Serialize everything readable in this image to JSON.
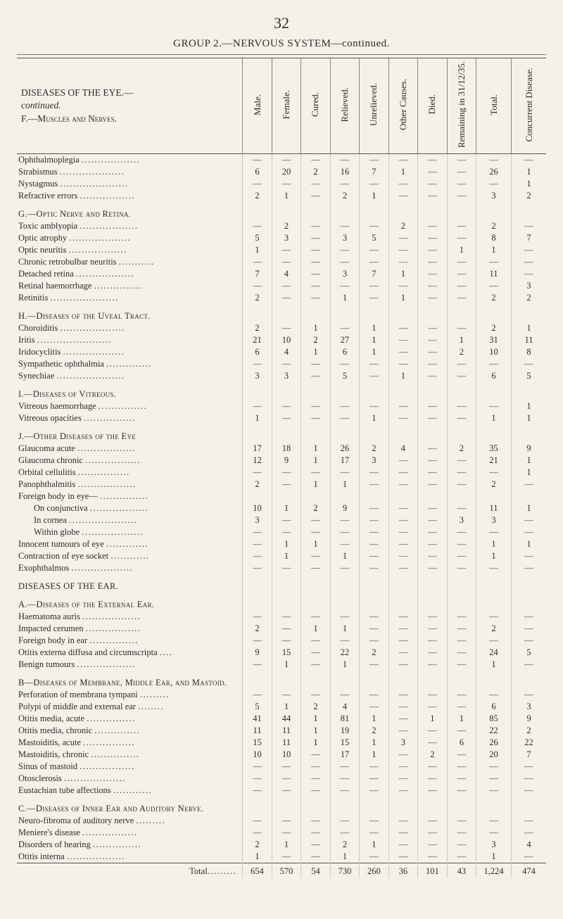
{
  "page_number": "32",
  "title": "GROUP 2.—NERVOUS SYSTEM—continued.",
  "header_left_lines": [
    "DISEASES OF THE EYE.—",
    "continued.",
    "F.—Muscles and Nerves."
  ],
  "columns_rotated": [
    "Male.",
    "Female.",
    "Cured.",
    "Relieved.",
    "Unrelieved.",
    "Other Causes.",
    "Died.",
    "Remaining in 31/12/35.",
    "Total.",
    "Concurrent Disease."
  ],
  "rows": [
    {
      "label": "Ophthalmoplegia",
      "cells": [
        "—",
        "—",
        "—",
        "—",
        "—",
        "—",
        "—",
        "—",
        "—",
        "—"
      ]
    },
    {
      "label": "Strabismus",
      "cells": [
        "6",
        "20",
        "2",
        "16",
        "7",
        "1",
        "—",
        "—",
        "26",
        "1"
      ]
    },
    {
      "label": "Nystagmus",
      "cells": [
        "—",
        "—",
        "—",
        "—",
        "—",
        "—",
        "—",
        "—",
        "—",
        "1"
      ]
    },
    {
      "label": "Refractive errors",
      "cells": [
        "2",
        "1",
        "—",
        "2",
        "1",
        "—",
        "—",
        "—",
        "3",
        "2"
      ]
    },
    {
      "section": "G.—Optic Nerve and Retina."
    },
    {
      "label": "Toxic amblyopia",
      "cells": [
        "—",
        "2",
        "—",
        "—",
        "—",
        "2",
        "—",
        "—",
        "2",
        "—"
      ]
    },
    {
      "label": "Optic atrophy",
      "cells": [
        "5",
        "3",
        "—",
        "3",
        "5",
        "—",
        "—",
        "—",
        "8",
        "7"
      ]
    },
    {
      "label": "Optic neuritis",
      "cells": [
        "1",
        "—",
        "—",
        "—",
        "—",
        "—",
        "—",
        "1",
        "1",
        "—"
      ]
    },
    {
      "label": "Chronic retrobulbar neuritis",
      "cells": [
        "—",
        "—",
        "—",
        "—",
        "—",
        "—",
        "—",
        "—",
        "—",
        "—"
      ]
    },
    {
      "label": "Detached retina",
      "cells": [
        "7",
        "4",
        "—",
        "3",
        "7",
        "1",
        "—",
        "—",
        "11",
        "—"
      ]
    },
    {
      "label": "Retinal haemorrhage",
      "cells": [
        "—",
        "—",
        "—",
        "—",
        "—",
        "—",
        "—",
        "—",
        "—",
        "3"
      ]
    },
    {
      "label": "Retinitis",
      "cells": [
        "2",
        "—",
        "—",
        "1",
        "—",
        "1",
        "—",
        "—",
        "2",
        "2"
      ]
    },
    {
      "section": "H.—Diseases of the Uveal Tract."
    },
    {
      "label": "Choroiditis",
      "cells": [
        "2",
        "—",
        "1",
        "—",
        "1",
        "—",
        "—",
        "—",
        "2",
        "1"
      ]
    },
    {
      "label": "Iritis",
      "cells": [
        "21",
        "10",
        "2",
        "27",
        "1",
        "—",
        "—",
        "1",
        "31",
        "11"
      ]
    },
    {
      "label": "Iridocyclitis",
      "cells": [
        "6",
        "4",
        "1",
        "6",
        "1",
        "—",
        "—",
        "2",
        "10",
        "8"
      ]
    },
    {
      "label": "Sympathetic ophthalmia",
      "cells": [
        "—",
        "—",
        "—",
        "—",
        "—",
        "—",
        "—",
        "—",
        "—",
        "—"
      ]
    },
    {
      "label": "Synechiae",
      "cells": [
        "3",
        "3",
        "—",
        "5",
        "—",
        "1",
        "—",
        "—",
        "6",
        "5"
      ]
    },
    {
      "section": "I.—Diseases of Vitreous."
    },
    {
      "label": "Vitreous haemorrhage",
      "cells": [
        "—",
        "—",
        "—",
        "—",
        "—",
        "—",
        "—",
        "—",
        "—",
        "1"
      ]
    },
    {
      "label": "Vitreous opacities",
      "cells": [
        "1",
        "—",
        "—",
        "—",
        "1",
        "—",
        "—",
        "—",
        "1",
        "1"
      ]
    },
    {
      "section": "J.—Other Diseases of the Eye"
    },
    {
      "label": "Glaucoma acute",
      "cells": [
        "17",
        "18",
        "1",
        "26",
        "2",
        "4",
        "—",
        "2",
        "35",
        "9"
      ]
    },
    {
      "label": "Glaucoma chronic",
      "cells": [
        "12",
        "9",
        "1",
        "17",
        "3",
        "—",
        "—",
        "—",
        "21",
        "1"
      ]
    },
    {
      "label": "Orbital cellulitis",
      "cells": [
        "—",
        "—",
        "—",
        "—",
        "—",
        "—",
        "—",
        "—",
        "—",
        "1"
      ]
    },
    {
      "label": "Panophthalmitis",
      "cells": [
        "2",
        "—",
        "1",
        "1",
        "—",
        "—",
        "—",
        "—",
        "2",
        "—"
      ]
    },
    {
      "label": "Foreign body in eye—",
      "cells": [
        "",
        "",
        "",
        "",
        "",
        "",
        "",
        "",
        "",
        ""
      ]
    },
    {
      "label": "On conjunctiva",
      "indent": true,
      "cells": [
        "10",
        "1",
        "2",
        "9",
        "—",
        "—",
        "—",
        "—",
        "11",
        "1"
      ]
    },
    {
      "label": "In cornea",
      "indent": true,
      "cells": [
        "3",
        "—",
        "—",
        "—",
        "—",
        "—",
        "—",
        "3",
        "3",
        "—"
      ]
    },
    {
      "label": "Within globe",
      "indent": true,
      "cells": [
        "—",
        "—",
        "—",
        "—",
        "—",
        "—",
        "—",
        "—",
        "—",
        "—"
      ]
    },
    {
      "label": "Innocent tumours of eye",
      "cells": [
        "—",
        "1",
        "1",
        "—",
        "—",
        "—",
        "—",
        "—",
        "1",
        "1"
      ]
    },
    {
      "label": "Contraction of eye socket",
      "cells": [
        "—",
        "1",
        "—",
        "1",
        "—",
        "—",
        "—",
        "—",
        "1",
        "—"
      ]
    },
    {
      "label": "Exophthalmos",
      "cells": [
        "—",
        "—",
        "—",
        "—",
        "—",
        "—",
        "—",
        "—",
        "—",
        "—"
      ]
    },
    {
      "major": "DISEASES OF THE EAR."
    },
    {
      "section": "A.—Diseases of the External Ear."
    },
    {
      "label": "Haematoma auris",
      "cells": [
        "—",
        "—",
        "—",
        "—",
        "—",
        "—",
        "—",
        "—",
        "—",
        "—"
      ]
    },
    {
      "label": "Impacted cerumen",
      "cells": [
        "2",
        "—",
        "1",
        "1",
        "—",
        "—",
        "—",
        "—",
        "2",
        "—"
      ]
    },
    {
      "label": "Foreign body in ear",
      "cells": [
        "—",
        "—",
        "—",
        "—",
        "—",
        "—",
        "—",
        "—",
        "—",
        "—"
      ]
    },
    {
      "label": "Otitis externa diffusa and circumscripta",
      "cells": [
        "9",
        "15",
        "—",
        "22",
        "2",
        "—",
        "—",
        "—",
        "24",
        "5"
      ]
    },
    {
      "label": "Benign tumours",
      "cells": [
        "—",
        "1",
        "—",
        "1",
        "—",
        "—",
        "—",
        "—",
        "1",
        "—"
      ]
    },
    {
      "section": "B—Diseases of Membrane, Middle Ear, and Mastoid."
    },
    {
      "label": "Perforation of membrana tympani",
      "cells": [
        "—",
        "—",
        "—",
        "—",
        "—",
        "—",
        "—",
        "—",
        "—",
        "—"
      ]
    },
    {
      "label": "Polypi of middle and external ear",
      "cells": [
        "5",
        "1",
        "2",
        "4",
        "—",
        "—",
        "—",
        "—",
        "6",
        "3"
      ]
    },
    {
      "label": "Otitis media, acute",
      "cells": [
        "41",
        "44",
        "1",
        "81",
        "1",
        "—",
        "1",
        "1",
        "85",
        "9"
      ]
    },
    {
      "label": "Otitis media, chronic",
      "cells": [
        "11",
        "11",
        "1",
        "19",
        "2",
        "—",
        "—",
        "—",
        "22",
        "2"
      ]
    },
    {
      "label": "Mastoiditis, acute",
      "cells": [
        "15",
        "11",
        "1",
        "15",
        "1",
        "3",
        "—",
        "6",
        "26",
        "22"
      ]
    },
    {
      "label": "Mastoiditis, chronic",
      "cells": [
        "10",
        "10",
        "—",
        "17",
        "1",
        "—",
        "2",
        "—",
        "20",
        "7"
      ]
    },
    {
      "label": "Sinus of mastoid",
      "cells": [
        "—",
        "—",
        "—",
        "—",
        "—",
        "—",
        "—",
        "—",
        "—",
        "—"
      ]
    },
    {
      "label": "Otosclerosis",
      "cells": [
        "—",
        "—",
        "—",
        "—",
        "—",
        "—",
        "—",
        "—",
        "—",
        "—"
      ]
    },
    {
      "label": "Eustachian tube affections",
      "cells": [
        "—",
        "—",
        "—",
        "—",
        "—",
        "—",
        "—",
        "—",
        "—",
        "—"
      ]
    },
    {
      "section": "C.—Diseases of Inner Ear and Auditory Nerve."
    },
    {
      "label": "Neuro-fibroma of auditory nerve",
      "cells": [
        "—",
        "—",
        "—",
        "—",
        "—",
        "—",
        "—",
        "—",
        "—",
        "—"
      ]
    },
    {
      "label": "Meniere's disease",
      "cells": [
        "—",
        "—",
        "—",
        "—",
        "—",
        "—",
        "—",
        "—",
        "—",
        "—"
      ]
    },
    {
      "label": "Disorders of hearing",
      "cells": [
        "2",
        "1",
        "—",
        "2",
        "1",
        "—",
        "—",
        "—",
        "3",
        "4"
      ]
    },
    {
      "label": "Otitis interna",
      "cells": [
        "1",
        "—",
        "—",
        "1",
        "—",
        "—",
        "—",
        "—",
        "1",
        "—"
      ]
    }
  ],
  "total_label": "Total",
  "total_cells": [
    "654",
    "570",
    "54",
    "730",
    "260",
    "36",
    "101",
    "43",
    "1,224",
    "474"
  ]
}
